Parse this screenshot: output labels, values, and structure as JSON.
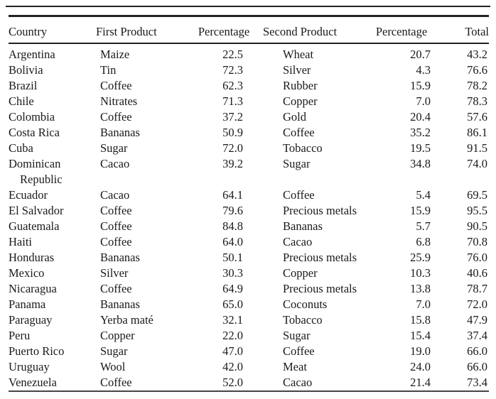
{
  "table": {
    "headers": [
      "Country",
      "First Product",
      "Percentage",
      "Second Product",
      "Percentage",
      "Total"
    ],
    "rows": [
      [
        "Argentina",
        "Maize",
        "22.5",
        "Wheat",
        "20.7",
        "43.2"
      ],
      [
        "Bolivia",
        "Tin",
        "72.3",
        "Silver",
        "4.3",
        "76.6"
      ],
      [
        "Brazil",
        "Coffee",
        "62.3",
        "Rubber",
        "15.9",
        "78.2"
      ],
      [
        "Chile",
        "Nitrates",
        "71.3",
        "Copper",
        "7.0",
        "78.3"
      ],
      [
        "Colombia",
        "Coffee",
        "37.2",
        "Gold",
        "20.4",
        "57.6"
      ],
      [
        "Costa Rica",
        "Bananas",
        "50.9",
        "Coffee",
        "35.2",
        "86.1"
      ],
      [
        "Cuba",
        "Sugar",
        "72.0",
        "Tobacco",
        "19.5",
        "91.5"
      ],
      [
        "Dominican Republic",
        "Cacao",
        "39.2",
        "Sugar",
        "34.8",
        "74.0"
      ],
      [
        "Ecuador",
        "Cacao",
        "64.1",
        "Coffee",
        "5.4",
        "69.5"
      ],
      [
        "El Salvador",
        "Coffee",
        "79.6",
        "Precious metals",
        "15.9",
        "95.5"
      ],
      [
        "Guatemala",
        "Coffee",
        "84.8",
        "Bananas",
        "5.7",
        "90.5"
      ],
      [
        "Haiti",
        "Coffee",
        "64.0",
        "Cacao",
        "6.8",
        "70.8"
      ],
      [
        "Honduras",
        "Bananas",
        "50.1",
        "Precious metals",
        "25.9",
        "76.0"
      ],
      [
        "Mexico",
        "Silver",
        "30.3",
        "Copper",
        "10.3",
        "40.6"
      ],
      [
        "Nicaragua",
        "Coffee",
        "64.9",
        "Precious metals",
        "13.8",
        "78.7"
      ],
      [
        "Panama",
        "Bananas",
        "65.0",
        "Coconuts",
        "7.0",
        "72.0"
      ],
      [
        "Paraguay",
        "Yerba maté",
        "32.1",
        "Tobacco",
        "15.8",
        "47.9"
      ],
      [
        "Peru",
        "Copper",
        "22.0",
        "Sugar",
        "15.4",
        "37.4"
      ],
      [
        "Puerto Rico",
        "Sugar",
        "47.0",
        "Coffee",
        "19.0",
        "66.0"
      ],
      [
        "Uruguay",
        "Wool",
        "42.0",
        "Meat",
        "24.0",
        "66.0"
      ],
      [
        "Venezuela",
        "Coffee",
        "52.0",
        "Cacao",
        "21.4",
        "73.4"
      ]
    ]
  }
}
